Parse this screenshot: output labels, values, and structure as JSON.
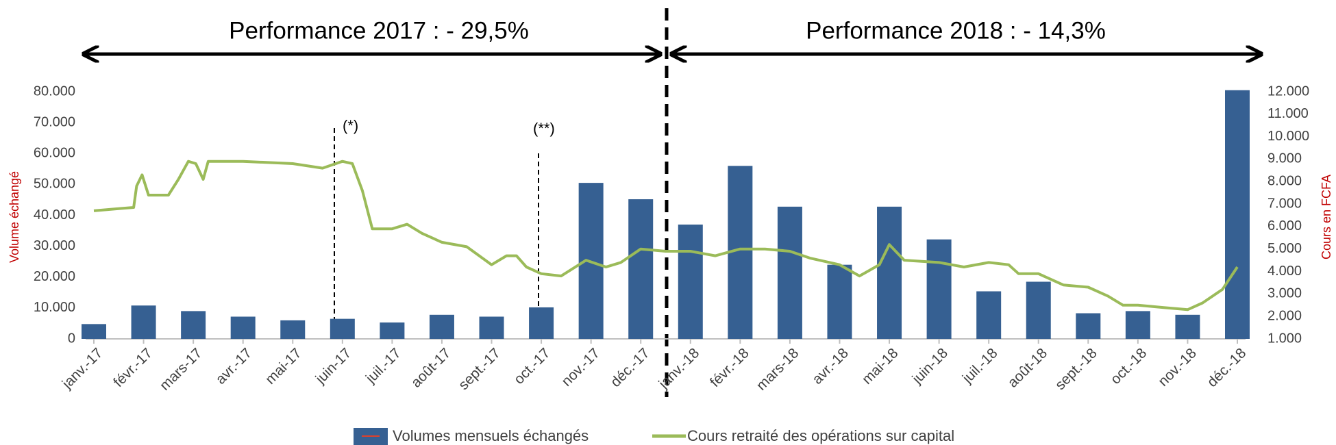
{
  "chart_data": {
    "type": "bar_line",
    "annotations": [
      "Performance 2017 : - 29,5%",
      "Performance 2018 : - 14,3%",
      "(*)",
      "(**)"
    ],
    "ylabel": "Volume échangé",
    "y2label": "Cours en FCFA",
    "categories": [
      "janv.-17",
      "févr.-17",
      "mars-17",
      "avr.-17",
      "mai-17",
      "juin-17",
      "juil.-17",
      "août-17",
      "sept.-17",
      "oct.-17",
      "nov.-17",
      "déc.-17",
      "janv.-18",
      "févr.-18",
      "mars-18",
      "avr.-18",
      "mai-18",
      "juin-18",
      "juil.-18",
      "août-18",
      "sept.-18",
      "oct.-18",
      "nov.-18",
      "déc.-18"
    ],
    "series": [
      {
        "name": "Volumes mensuels échangés",
        "type": "bar",
        "color": "#366092",
        "values": [
          4800,
          10800,
          9000,
          7200,
          6000,
          6500,
          5300,
          7800,
          7200,
          10200,
          50500,
          45200,
          37000,
          56000,
          42800,
          24000,
          42800,
          32200,
          15400,
          18500,
          8300,
          9000,
          7800,
          80500
        ]
      },
      {
        "name": "Cours retraité des opérations sur capital",
        "type": "line",
        "color": "#9bbb59",
        "axis": "y2",
        "x": [
          0,
          0.5,
          0.8,
          0.86,
          0.97,
          1.1,
          1.5,
          1.7,
          1.9,
          2.05,
          2.2,
          2.3,
          3,
          4,
          4.6,
          5,
          5.2,
          5.4,
          5.6,
          6,
          6.3,
          6.6,
          7,
          7.5,
          8,
          8.3,
          8.5,
          8.7,
          9,
          9.4,
          9.9,
          10.3,
          10.6,
          11,
          11.5,
          12,
          12.5,
          13,
          13.5,
          14,
          14.4,
          15,
          15.4,
          15.8,
          16,
          16.3,
          17,
          17.5,
          18,
          18.4,
          18.6,
          19,
          19.5,
          20,
          20.4,
          20.7,
          21,
          21.5,
          22,
          22.3,
          22.7,
          23
        ],
        "values": [
          6700,
          6800,
          6850,
          7800,
          8300,
          7400,
          7400,
          8100,
          8900,
          8800,
          8100,
          8900,
          8900,
          8800,
          8600,
          8900,
          8800,
          7600,
          5900,
          5900,
          6100,
          5700,
          5300,
          5100,
          4300,
          4700,
          4700,
          4200,
          3900,
          3800,
          4500,
          4200,
          4400,
          5000,
          4900,
          4900,
          4700,
          5000,
          5000,
          4900,
          4600,
          4300,
          3800,
          4300,
          5200,
          4500,
          4400,
          4200,
          4400,
          4300,
          3900,
          3900,
          3400,
          3300,
          2900,
          2500,
          2500,
          2400,
          2300,
          2600,
          3200,
          4200
        ]
      }
    ],
    "ylim": [
      0,
      80000
    ],
    "yticks": [
      0,
      {
        "value": 10000,
        "label": "10.000"
      },
      {
        "value": 20000,
        "label": "20.000"
      },
      {
        "value": 30000,
        "label": "30.000"
      },
      {
        "value": 40000,
        "label": "40.000"
      },
      {
        "value": 50000,
        "label": "50.000"
      },
      {
        "value": 60000,
        "label": "60.000"
      },
      {
        "value": 70000,
        "label": "70.000"
      },
      {
        "value": 80000,
        "label": "80.000"
      }
    ],
    "y2lim": [
      1000,
      12000
    ],
    "y2ticks": [
      {
        "value": 1000,
        "label": "1.000"
      },
      {
        "value": 2000,
        "label": "2.000"
      },
      {
        "value": 3000,
        "label": "3.000"
      },
      {
        "value": 4000,
        "label": "4.000"
      },
      {
        "value": 5000,
        "label": "5.000"
      },
      {
        "value": 6000,
        "label": "6.000"
      },
      {
        "value": 7000,
        "label": "7.000"
      },
      {
        "value": 8000,
        "label": "8.000"
      },
      {
        "value": 9000,
        "label": "9.000"
      },
      {
        "value": 10000,
        "label": "10.000"
      },
      {
        "value": 11000,
        "label": "11.000"
      },
      {
        "value": 12000,
        "label": "12.000"
      }
    ],
    "grid": false,
    "legend": "bottom"
  }
}
